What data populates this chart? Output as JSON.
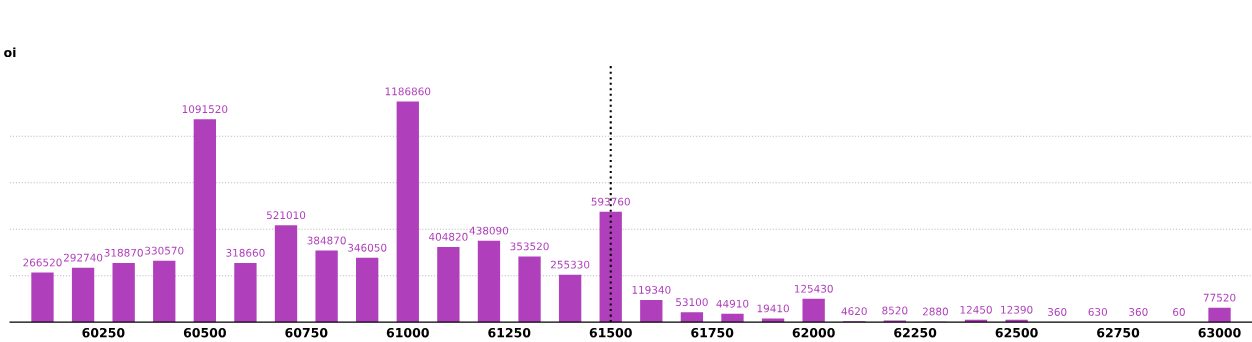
{
  "chart_data": {
    "type": "bar",
    "ylabel": "oi",
    "x": [
      60100,
      60200,
      60300,
      60400,
      60500,
      60600,
      60700,
      60800,
      60900,
      61000,
      61100,
      61200,
      61300,
      61400,
      61500,
      61600,
      61700,
      61800,
      61900,
      62000,
      62100,
      62200,
      62300,
      62400,
      62500,
      62600,
      62700,
      62800,
      62900,
      63000
    ],
    "series": [
      {
        "color": "#b03fbb",
        "values": [
          266520,
          292740,
          318870,
          330570,
          1091520,
          318660,
          521010,
          384870,
          346050,
          1186860,
          404820,
          438090,
          353520,
          255330,
          593760,
          119340,
          53100,
          44910,
          19410,
          125430,
          4620,
          8520,
          2880,
          12450,
          12390,
          360,
          630,
          360,
          60,
          77520
        ]
      }
    ],
    "data_labels": true,
    "xlim": [
      60020,
      63080
    ],
    "xticks": [
      60250,
      60500,
      60750,
      61000,
      61250,
      61500,
      61750,
      62000,
      62250,
      62500,
      62750,
      63000
    ],
    "yticks": [
      {
        "value": 250000,
        "label": null
      },
      {
        "value": 500000,
        "label": null
      },
      {
        "value": 750000,
        "label": null
      },
      {
        "value": 1000000,
        "label": null
      }
    ],
    "grid": "y",
    "ref_lines": [
      {
        "axis": "x",
        "value": 61500,
        "color": "#000000",
        "line_style": "dotted"
      }
    ]
  }
}
